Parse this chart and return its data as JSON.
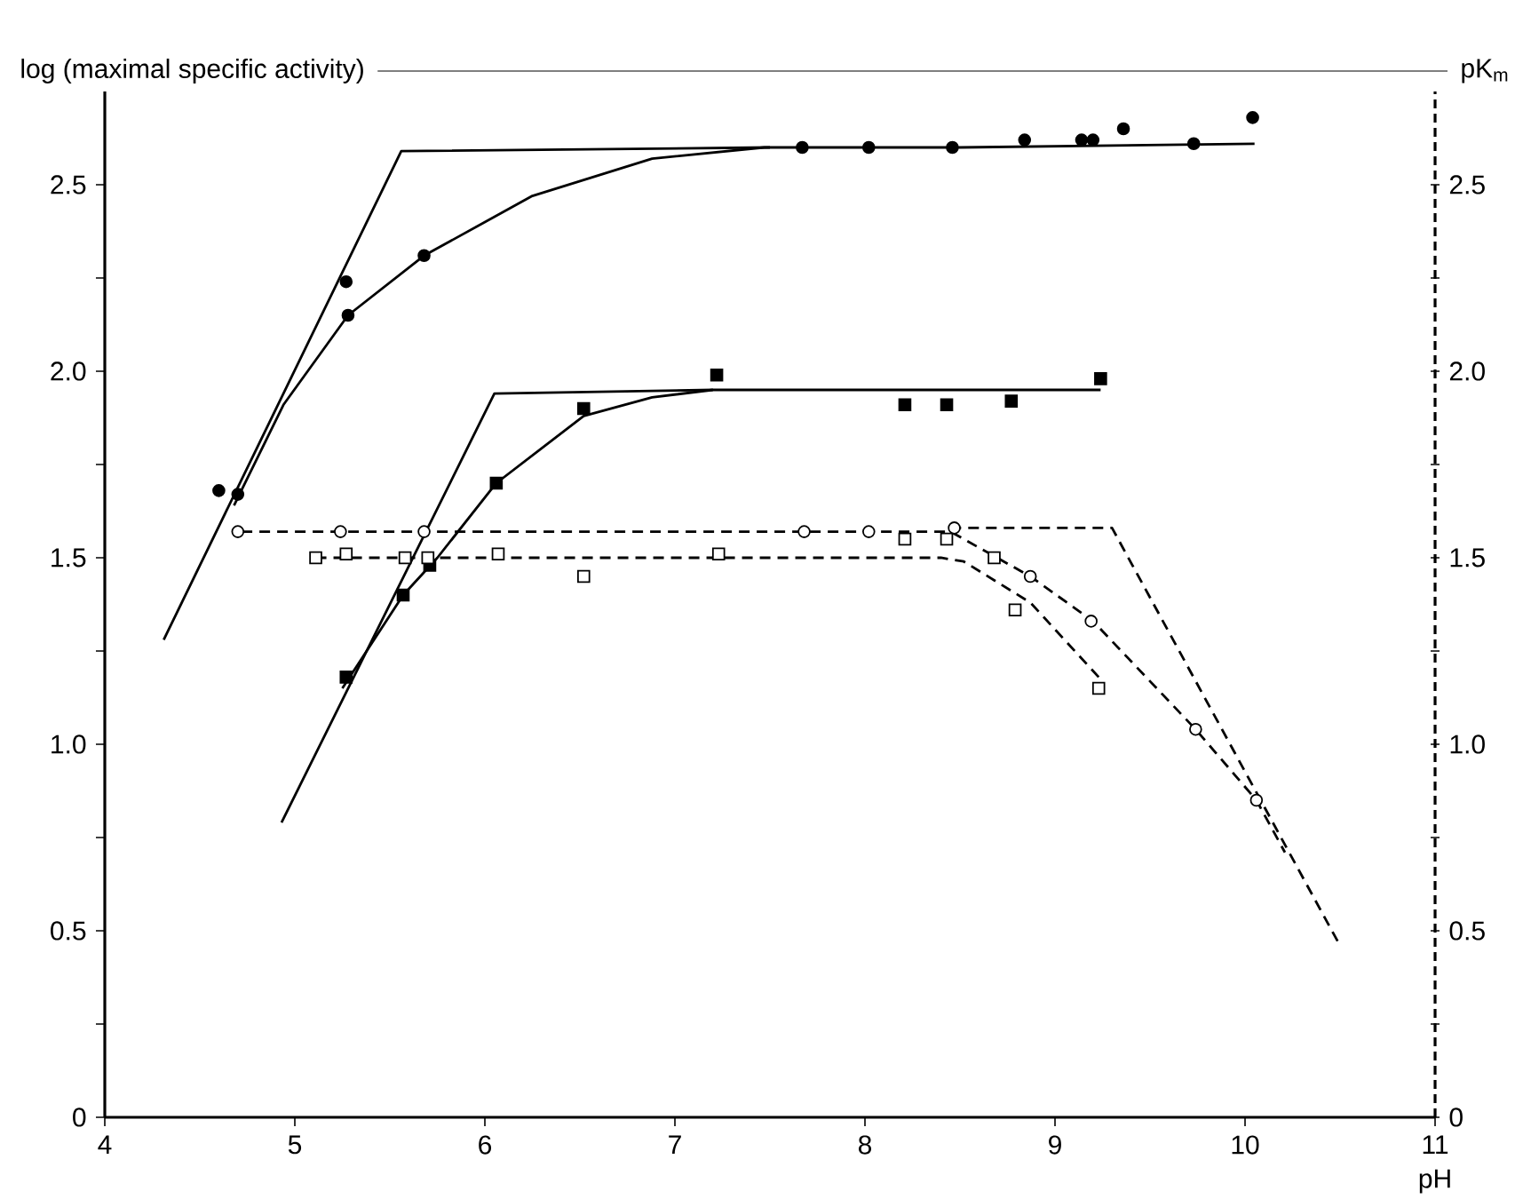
{
  "chart_data": {
    "type": "scatter",
    "xlabel": "pH",
    "ylabel": "log (maximal specific activity)",
    "y2label": "pK$_{m}$",
    "xlim": [
      4,
      11
    ],
    "xticks": [
      4,
      5,
      6,
      7,
      8,
      9,
      10,
      11
    ],
    "ylim": [
      0,
      2.75
    ],
    "yticks": [
      0,
      {
        "value": 0.25,
        "label": null
      },
      {
        "value": 0.5,
        "label": "0.5"
      },
      {
        "value": 0.75,
        "label": null
      },
      {
        "value": 1,
        "label": "1.0"
      },
      {
        "value": 1.25,
        "label": null
      },
      {
        "value": 1.5,
        "label": "1.5"
      },
      {
        "value": 1.75,
        "label": null
      },
      {
        "value": 2,
        "label": "2.0"
      },
      {
        "value": 2.25,
        "label": null
      },
      {
        "value": 2.5,
        "label": "2.5"
      }
    ],
    "y2lim": [
      0,
      2.75
    ],
    "y2ticks": [
      0,
      {
        "value": 0.25,
        "label": null
      },
      {
        "value": 0.5,
        "label": "0.5"
      },
      {
        "value": 0.75,
        "label": null
      },
      {
        "value": 1,
        "label": "1.0"
      },
      {
        "value": 1.25,
        "label": null
      },
      {
        "value": 1.5,
        "label": "1.5"
      },
      {
        "value": 1.75,
        "label": null
      },
      {
        "value": 2,
        "label": "2.0"
      },
      {
        "value": 2.25,
        "label": null
      },
      {
        "value": 2.5,
        "label": "2.5"
      }
    ],
    "grid": false,
    "series": [
      {
        "type": "line",
        "color": "#000000",
        "line_style": "solid",
        "x": [
          4.31,
          5.56,
          7.5
        ],
        "values": [
          1.28,
          2.59,
          2.6
        ]
      },
      {
        "type": "line",
        "color": "#000000",
        "line_style": "solid",
        "x": [
          4.93,
          6.05,
          7.2
        ],
        "values": [
          0.79,
          1.94,
          1.95
        ]
      },
      {
        "type": "line",
        "axis": "y2",
        "color": "#000000",
        "line_style": "dashed",
        "x": [
          8.45,
          9.3,
          10.5
        ],
        "values": [
          1.58,
          1.58,
          0.46
        ]
      },
      {
        "type": "line",
        "color": "#000000",
        "line_style": "solid",
        "x": [
          4.68,
          4.94,
          5.28,
          5.68,
          6.25,
          6.88,
          7.47,
          8.5,
          10.05
        ],
        "values": [
          1.64,
          1.91,
          2.15,
          2.31,
          2.47,
          2.57,
          2.6,
          2.6,
          2.61
        ]
      },
      {
        "type": "line",
        "color": "#000000",
        "line_style": "solid",
        "x": [
          5.25,
          5.57,
          5.75,
          6.06,
          6.52,
          6.88,
          7.2,
          9.24
        ],
        "values": [
          1.15,
          1.4,
          1.5,
          1.7,
          1.88,
          1.93,
          1.95,
          1.95
        ]
      },
      {
        "type": "line",
        "axis": "y2",
        "color": "#000000",
        "line_style": "dashed",
        "x": [
          4.72,
          8.45,
          8.87,
          9.2,
          9.74,
          10.06,
          10.21
        ],
        "values": [
          1.57,
          1.57,
          1.45,
          1.33,
          1.04,
          0.85,
          0.71
        ]
      },
      {
        "type": "line",
        "axis": "y2",
        "color": "#000000",
        "line_style": "dashed",
        "x": [
          5.11,
          8.4,
          8.52,
          8.87,
          9.23
        ],
        "values": [
          1.5,
          1.5,
          1.49,
          1.38,
          1.18
        ]
      },
      {
        "marker": "circle",
        "color": "#000000",
        "x": [
          4.6,
          4.7,
          5.27,
          5.28,
          5.68,
          7.67,
          8.02,
          8.46,
          8.84,
          9.14,
          9.2,
          9.36,
          9.73,
          10.04
        ],
        "values": [
          1.68,
          1.67,
          2.24,
          2.15,
          2.31,
          2.6,
          2.6,
          2.6,
          2.62,
          2.62,
          2.62,
          2.65,
          2.61,
          2.68
        ]
      },
      {
        "marker": "square",
        "color": "#000000",
        "x": [
          5.27,
          5.57,
          5.71,
          6.06,
          6.52,
          7.22,
          8.21,
          8.43,
          8.77,
          9.24
        ],
        "values": [
          1.18,
          1.4,
          1.48,
          1.7,
          1.9,
          1.99,
          1.91,
          1.91,
          1.92,
          1.98
        ]
      },
      {
        "axis": "y2",
        "marker": "circle",
        "color": "#000000",
        "x": [
          4.7,
          5.24,
          5.68,
          7.68,
          8.02,
          8.47,
          8.87,
          9.19,
          9.74,
          10.06
        ],
        "values": [
          1.57,
          1.57,
          1.57,
          1.57,
          1.57,
          1.58,
          1.45,
          1.33,
          1.04,
          0.85
        ]
      },
      {
        "axis": "y2",
        "marker": "square",
        "color": "#000000",
        "x": [
          5.11,
          5.27,
          5.58,
          5.7,
          6.07,
          6.52,
          7.23,
          8.21,
          8.43,
          8.68,
          8.79,
          9.23
        ],
        "values": [
          1.5,
          1.51,
          1.5,
          1.5,
          1.51,
          1.45,
          1.51,
          1.55,
          1.55,
          1.5,
          1.36,
          1.15
        ]
      }
    ]
  }
}
